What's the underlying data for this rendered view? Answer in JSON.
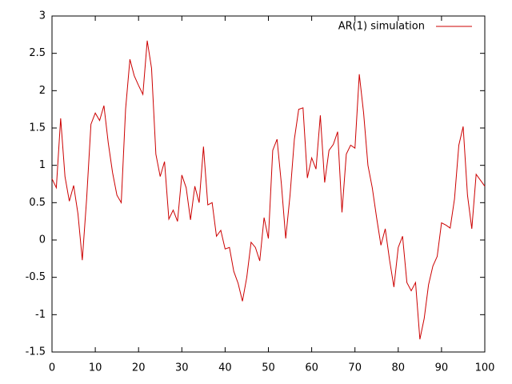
{
  "chart_data": {
    "type": "line",
    "x": [
      0,
      1,
      2,
      3,
      4,
      5,
      6,
      7,
      8,
      9,
      10,
      11,
      12,
      13,
      14,
      15,
      16,
      17,
      18,
      19,
      20,
      21,
      22,
      23,
      24,
      25,
      26,
      27,
      28,
      29,
      30,
      31,
      32,
      33,
      34,
      35,
      36,
      37,
      38,
      39,
      40,
      41,
      42,
      43,
      44,
      45,
      46,
      47,
      48,
      49,
      50,
      51,
      52,
      53,
      54,
      55,
      56,
      57,
      58,
      59,
      60,
      61,
      62,
      63,
      64,
      65,
      66,
      67,
      68,
      69,
      70,
      71,
      72,
      73,
      74,
      75,
      76,
      77,
      78,
      79,
      80,
      81,
      82,
      83,
      84,
      85,
      86,
      87,
      88,
      89,
      90,
      91,
      92,
      93,
      94,
      95,
      96,
      97,
      98,
      99,
      100
    ],
    "series": [
      {
        "name": "AR(1) simulation",
        "color": "#cc0000",
        "values": [
          0.82,
          0.7,
          1.63,
          0.85,
          0.52,
          0.73,
          0.35,
          -0.27,
          0.55,
          1.55,
          1.7,
          1.6,
          1.8,
          1.3,
          0.9,
          0.6,
          0.5,
          1.75,
          2.42,
          2.2,
          2.07,
          1.95,
          2.67,
          2.3,
          1.15,
          0.85,
          1.05,
          0.28,
          0.4,
          0.25,
          0.87,
          0.7,
          0.27,
          0.72,
          0.5,
          1.25,
          0.47,
          0.5,
          0.05,
          0.13,
          -0.12,
          -0.1,
          -0.42,
          -0.58,
          -0.82,
          -0.5,
          -0.03,
          -0.1,
          -0.28,
          0.3,
          0.02,
          1.2,
          1.35,
          0.75,
          0.02,
          0.6,
          1.35,
          1.75,
          1.77,
          0.83,
          1.1,
          0.95,
          1.67,
          0.77,
          1.2,
          1.28,
          1.45,
          0.37,
          1.15,
          1.27,
          1.23,
          2.22,
          1.7,
          1.0,
          0.7,
          0.3,
          -0.07,
          0.15,
          -0.27,
          -0.63,
          -0.1,
          0.05,
          -0.57,
          -0.68,
          -0.57,
          -1.33,
          -1.05,
          -0.6,
          -0.35,
          -0.22,
          0.23,
          0.2,
          0.16,
          0.55,
          1.27,
          1.52,
          0.6,
          0.15,
          0.88,
          0.8,
          0.72
        ]
      }
    ],
    "xlim": [
      0,
      100
    ],
    "xticks": [
      0,
      10,
      20,
      30,
      40,
      50,
      60,
      70,
      80,
      90,
      100
    ],
    "ylim": [
      -1.5,
      3
    ],
    "yticks": [
      -1.5,
      -1,
      -0.5,
      0,
      0.5,
      1,
      1.5,
      2,
      2.5,
      3
    ],
    "legend": "top-right"
  }
}
